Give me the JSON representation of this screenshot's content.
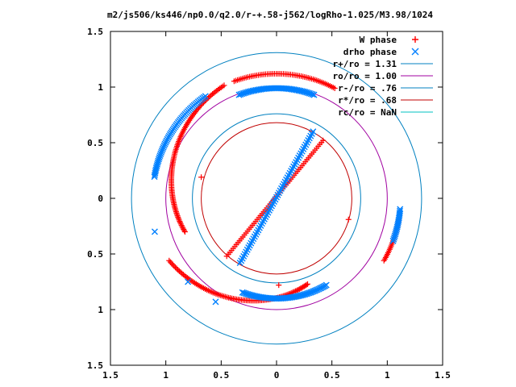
{
  "chart_data": {
    "type": "scatter",
    "title": "m2/js506/ks446/np0.0/q2.0/r-+.58-j562/logRho-1.025/M3.98/1024",
    "xlabel": "",
    "ylabel": "",
    "xlim": [
      -1.5,
      1.5
    ],
    "ylim": [
      -1.5,
      1.5
    ],
    "x_ticks": [
      -1.5,
      -1,
      -0.5,
      0,
      0.5,
      1,
      1.5
    ],
    "x_tick_labels": [
      "1.5",
      "1",
      "0.5",
      "0",
      "0.5",
      "1",
      "1.5"
    ],
    "y_ticks": [
      1.5,
      1,
      0.5,
      0,
      -0.5,
      -1,
      -1.5
    ],
    "y_tick_labels": [
      "1.5",
      "1",
      "0.5",
      "0",
      "0.5",
      "1",
      "1.5"
    ],
    "grid": false,
    "legend_position": "top-right",
    "series": [
      {
        "name": "W phase",
        "marker": "+",
        "color": "#ff0000",
        "arcs": [
          {
            "r_start": 1.12,
            "r_end": 1.12,
            "theta_start": 62,
            "theta_end": 110
          },
          {
            "r_start": 1.12,
            "r_end": 0.88,
            "theta_start": 115,
            "theta_end": 200
          },
          {
            "r_start": 1.12,
            "r_end": 0.82,
            "theta_start": 210,
            "theta_end": 290
          },
          {
            "r_start": 1.12,
            "r_end": 1.12,
            "theta_start": 330,
            "theta_end": 350
          }
        ],
        "lines": [
          {
            "x_start": -0.45,
            "y_start": -0.52,
            "x_end": 0.42,
            "y_end": 0.52
          }
        ],
        "points": [
          {
            "x": -0.68,
            "y": 0.19
          },
          {
            "x": 0.65,
            "y": -0.19
          },
          {
            "x": 0.02,
            "y": -0.78
          }
        ]
      },
      {
        "name": "drho phase",
        "marker": "x",
        "color": "#0080ff",
        "arcs": [
          {
            "r_start": 0.99,
            "r_end": 0.99,
            "theta_start": 70,
            "theta_end": 110
          },
          {
            "r_start": 1.12,
            "r_end": 1.12,
            "theta_start": 125,
            "theta_end": 170
          },
          {
            "r_start": 0.9,
            "r_end": 0.9,
            "theta_start": 250,
            "theta_end": 300
          },
          {
            "r_start": 1.12,
            "r_end": 1.12,
            "theta_start": 340,
            "theta_end": 355
          }
        ],
        "lines": [
          {
            "x_start": -0.33,
            "y_start": -0.58,
            "x_end": 0.33,
            "y_end": 0.6
          }
        ],
        "points": [
          {
            "x": -1.1,
            "y": -0.3
          },
          {
            "x": -0.8,
            "y": -0.75
          },
          {
            "x": -0.55,
            "y": -0.93
          }
        ]
      },
      {
        "name": "r+/ro = 1.31",
        "type": "circle",
        "radius": 1.31,
        "color": "#0080c0"
      },
      {
        "name": "ro/ro = 1.00",
        "type": "circle",
        "radius": 1.0,
        "color": "#a000a0"
      },
      {
        "name": "r-/ro = .76",
        "type": "circle",
        "radius": 0.76,
        "color": "#0080c0"
      },
      {
        "name": "r*/ro = .68",
        "type": "circle",
        "radius": 0.68,
        "color": "#c00000"
      },
      {
        "name": "rc/ro = NaN",
        "type": "circle",
        "radius": null,
        "color": "#00c0c0"
      }
    ]
  }
}
